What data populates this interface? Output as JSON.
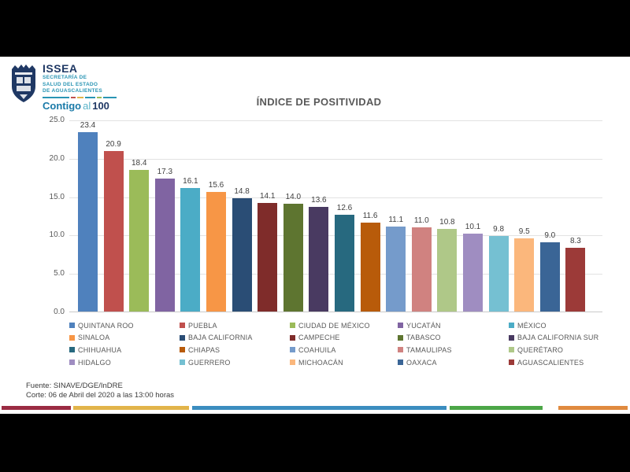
{
  "logo": {
    "org": "ISSEA",
    "sub_lines": [
      "SECRETARÍA DE",
      "SALUD DEL ESTADO",
      "DE AGUASCALIENTES"
    ],
    "slogan_part1": "Contigo",
    "slogan_part2": "al",
    "slogan_part3": "100",
    "navy": "#1f3864",
    "teal": "#2a95b4"
  },
  "chart_data": {
    "type": "bar",
    "title": "ÍNDICE DE POSITIVIDAD",
    "categories": [
      "QUINTANA ROO",
      "PUEBLA",
      "CIUDAD DE MÉXICO",
      "YUCATÁN",
      "MÉXICO",
      "SINALOA",
      "BAJA CALIFORNIA",
      "CAMPECHE",
      "TABASCO",
      "BAJA CALIFORNIA SUR",
      "CHIHUAHUA",
      "CHIAPAS",
      "COAHUILA",
      "TAMAULIPAS",
      "QUERÉTARO",
      "HIDALGO",
      "GUERRERO",
      "MICHOACÁN",
      "OAXACA",
      "AGUASCALIENTES"
    ],
    "values": [
      23.4,
      20.9,
      18.4,
      17.3,
      16.1,
      15.6,
      14.8,
      14.1,
      14.0,
      13.6,
      12.6,
      11.6,
      11.1,
      11.0,
      10.8,
      10.1,
      9.8,
      9.5,
      9.0,
      8.3
    ],
    "colors": [
      "#4F81BD",
      "#C0504D",
      "#9BBB59",
      "#8064A2",
      "#4BACC6",
      "#F79646",
      "#2A4D75",
      "#7F2C2A",
      "#5E7530",
      "#493A61",
      "#27697F",
      "#B85B0A",
      "#759BCB",
      "#D08280",
      "#AFC888",
      "#9F8DC1",
      "#75C0D2",
      "#FBB77C",
      "#3A6596",
      "#9C3A38"
    ],
    "ylim": [
      0,
      25
    ],
    "yticks": [
      0,
      5,
      10,
      15,
      20,
      25
    ],
    "grid": true,
    "xlabel": "",
    "ylabel": "",
    "legend_position": "bottom",
    "value_labels": true
  },
  "footer": {
    "source": "Fuente: SINAVE/DGE/InDRE",
    "cutoff": "Corte: 06 de Abril del 2020 a las 13:00 horas"
  },
  "bottom_stripe": {
    "colors": [
      "#9B2B43",
      "#E2B44A",
      "#3B8DBF",
      "#4CA647",
      "#E08A3F"
    ]
  },
  "logo_divider_colors": [
    "#2a95b4",
    "#C0504D",
    "#E2B44A",
    "#2a95b4",
    "#9BBB59",
    "#2a95b4"
  ]
}
